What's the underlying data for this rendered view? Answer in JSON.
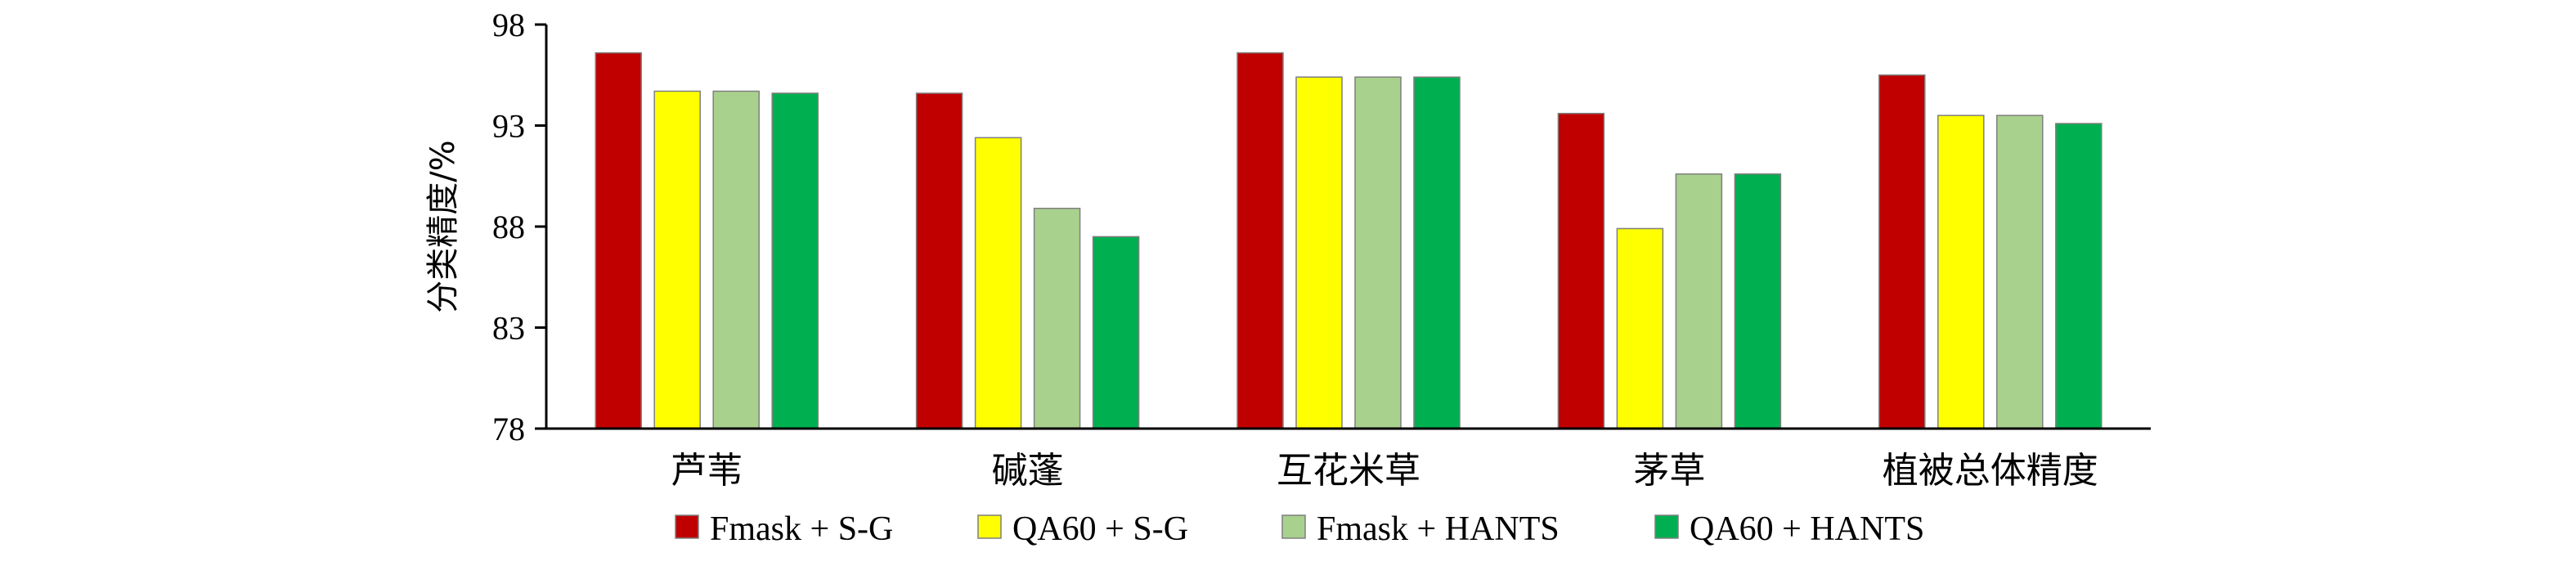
{
  "chart_data": {
    "type": "bar",
    "title": "",
    "xlabel": "",
    "ylabel": "分类精度/%",
    "categories": [
      "芦苇",
      "碱蓬",
      "互花米草",
      "茅草",
      "植被总体精度"
    ],
    "yticks": [
      "78",
      "83",
      "88",
      "93",
      "98"
    ],
    "ylim": [
      78,
      98
    ],
    "grid": false,
    "legend_position": "bottom",
    "series": [
      {
        "name": "Fmask + S-G",
        "color": "#c00000",
        "values": [
          96.6,
          94.6,
          96.6,
          93.6,
          95.5
        ]
      },
      {
        "name": "QA60 + S-G",
        "color": "#ffff00",
        "values": [
          94.7,
          92.4,
          95.4,
          87.9,
          93.5
        ]
      },
      {
        "name": "Fmask + HANTS",
        "color": "#a9d18e",
        "values": [
          94.7,
          88.9,
          95.4,
          90.6,
          93.5
        ]
      },
      {
        "name": "QA60 + HANTS",
        "color": "#00b050",
        "values": [
          94.6,
          87.5,
          95.4,
          90.6,
          93.1
        ]
      }
    ]
  }
}
